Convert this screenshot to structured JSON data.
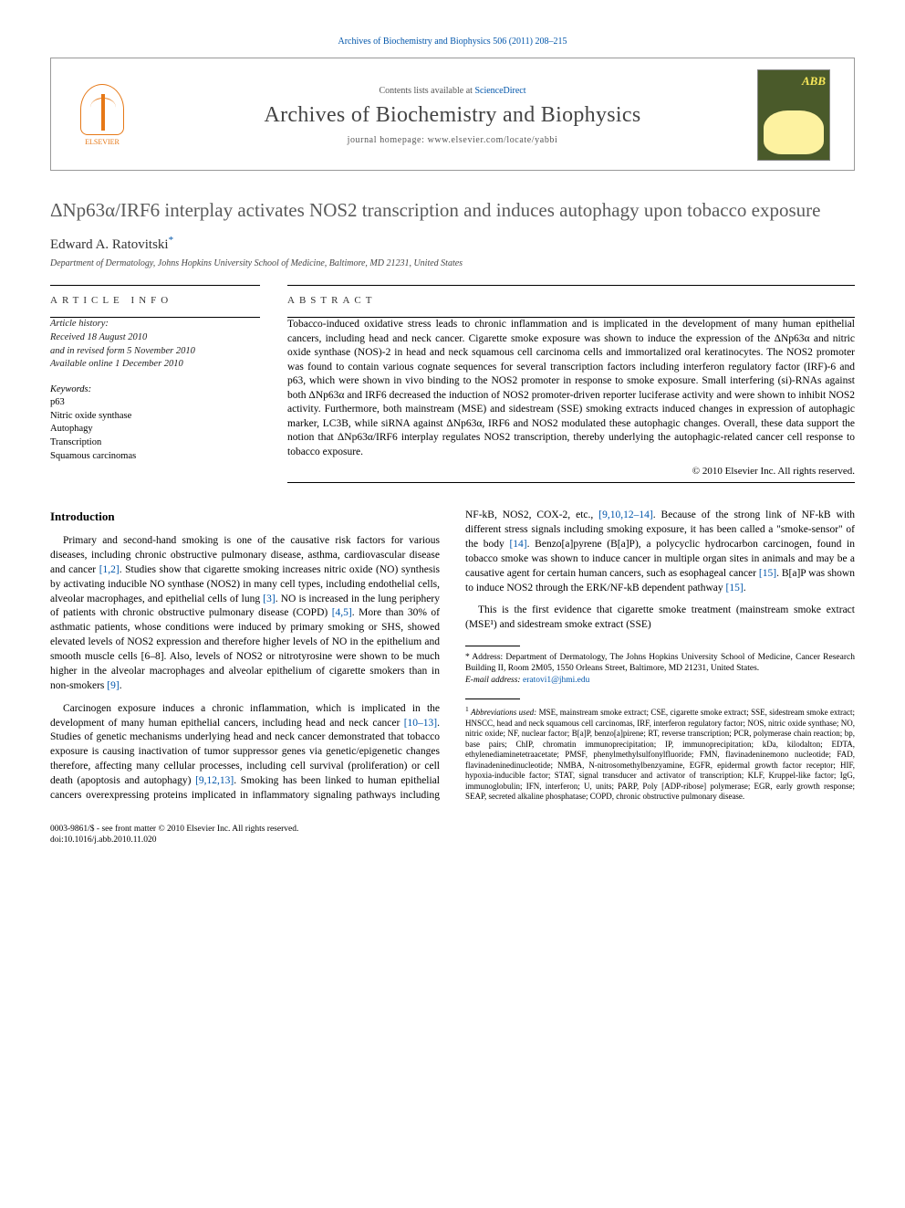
{
  "runningHead": "Archives of Biochemistry and Biophysics 506 (2011) 208–215",
  "header": {
    "contentsPrefix": "Contents lists available at ",
    "scienceDirect": "ScienceDirect",
    "journalTitle": "Archives of Biochemistry and Biophysics",
    "homepagePrefix": "journal homepage: ",
    "homepageUrl": "www.elsevier.com/locate/yabbi",
    "elsevierLabel": "ELSEVIER",
    "coverLabel": "ABB"
  },
  "article": {
    "title": "ΔNp63α/IRF6 interplay activates NOS2 transcription and induces autophagy upon tobacco exposure",
    "author": "Edward A. Ratovitski",
    "authorMark": "*",
    "affiliation": "Department of Dermatology, Johns Hopkins University School of Medicine, Baltimore, MD 21231, United States"
  },
  "articleInfo": {
    "heading": "ARTICLE INFO",
    "historyLabel": "Article history:",
    "received": "Received 18 August 2010",
    "revised": "and in revised form 5 November 2010",
    "online": "Available online 1 December 2010",
    "keywordsLabel": "Keywords:",
    "keywords": [
      "p63",
      "Nitric oxide synthase",
      "Autophagy",
      "Transcription",
      "Squamous carcinomas"
    ]
  },
  "abstract": {
    "heading": "ABSTRACT",
    "body": "Tobacco-induced oxidative stress leads to chronic inflammation and is implicated in the development of many human epithelial cancers, including head and neck cancer. Cigarette smoke exposure was shown to induce the expression of the ΔNp63α and nitric oxide synthase (NOS)-2 in head and neck squamous cell carcinoma cells and immortalized oral keratinocytes. The NOS2 promoter was found to contain various cognate sequences for several transcription factors including interferon regulatory factor (IRF)-6 and p63, which were shown in vivo binding to the NOS2 promoter in response to smoke exposure. Small interfering (si)-RNAs against both ΔNp63α and IRF6 decreased the induction of NOS2 promoter-driven reporter luciferase activity and were shown to inhibit NOS2 activity. Furthermore, both mainstream (MSE) and sidestream (SSE) smoking extracts induced changes in expression of autophagic marker, LC3B, while siRNA against ΔNp63α, IRF6 and NOS2 modulated these autophagic changes. Overall, these data support the notion that ΔNp63α/IRF6 interplay regulates NOS2 transcription, thereby underlying the autophagic-related cancer cell response to tobacco exposure.",
    "copyright": "© 2010 Elsevier Inc. All rights reserved."
  },
  "intro": {
    "heading": "Introduction",
    "p1a": "Primary and second-hand smoking is one of the causative risk factors for various diseases, including chronic obstructive pulmonary disease, asthma, cardiovascular disease and cancer ",
    "r1": "[1,2]",
    "p1b": ". Studies show that cigarette smoking increases nitric oxide (NO) synthesis by activating inducible NO synthase (NOS2) in many cell types, including endothelial cells, alveolar macrophages, and epithelial cells of lung ",
    "r2": "[3]",
    "p1c": ". NO is increased in the lung periphery of patients with chronic obstructive pulmonary disease (COPD) ",
    "r3": "[4,5]",
    "p1d": ". More than 30% of asthmatic patients, whose conditions were induced by primary smoking or SHS, showed elevated levels of NOS2 expression and therefore higher levels of NO in the epithelium and smooth muscle cells [6–8]. Also, levels of NOS2 or nitrotyrosine were shown to be much higher in the alveolar macrophages and alveolar epithelium of cigarette smokers than in non-smokers ",
    "r4": "[9]",
    "p1e": ".",
    "p2a": "Carcinogen exposure induces a chronic inflammation, which is implicated in the development of many human epithelial cancers, including head and neck cancer ",
    "r5": "[10–13]",
    "p2b": ". Studies of genetic mechanisms underlying head and neck cancer demonstrated that tobacco exposure is causing inactivation of tumor suppressor genes via ",
    "p3a": "genetic/epigenetic changes therefore, affecting many cellular processes, including cell survival (proliferation) or cell death (apoptosis and autophagy) ",
    "r6": "[9,12,13]",
    "p3b": ". Smoking has been linked to human epithelial cancers overexpressing proteins implicated in inflammatory signaling pathways including NF-kB, NOS2, COX-2, etc., ",
    "r7": "[9,10,12–14]",
    "p3c": ". Because of the strong link of NF-kB with different stress signals including smoking exposure, it has been called a \"smoke-sensor\" of the body ",
    "r8": "[14]",
    "p3d": ". Benzo[a]pyrene (B[a]P), a polycyclic hydrocarbon carcinogen, found in tobacco smoke was shown to induce cancer in multiple organ sites in animals and may be a causative agent for certain human cancers, such as esophageal cancer ",
    "r9": "[15]",
    "p3e": ". B[a]P was shown to induce NOS2 through the ERK/NF-kB dependent pathway ",
    "r10": "[15]",
    "p3f": ".",
    "p4": "This is the first evidence that cigarette smoke treatment (mainstream smoke extract (MSE¹) and sidestream smoke extract (SSE)"
  },
  "footnotes": {
    "corrPrefix": "* Address: Department of Dermatology, The Johns Hopkins University School of Medicine, Cancer Research Building II, Room 2M05, 1550 Orleans Street, Baltimore, MD 21231, United States.",
    "emailLabel": "E-mail address:",
    "email": "eratovi1@jhmi.edu",
    "abbrevLabel": "Abbreviations used:",
    "abbrevBody": " MSE, mainstream smoke extract; CSE, cigarette smoke extract; SSE, sidestream smoke extract; HNSCC, head and neck squamous cell carcinomas, IRF, interferon regulatory factor; NOS, nitric oxide synthase; NO, nitric oxide; NF, nuclear factor; B[a]P, benzo[a]pirene; RT, reverse transcription; PCR, polymerase chain reaction; bp, base pairs; ChIP, chromatin immunoprecipitation; IP, immunoprecipitation; kDa, kilodalton; EDTA, ethylenediaminetetraacetate; PMSF, phenylmethylsulfonylfluoride; FMN, flavinadeninemono nucleotide; FAD, flavinadeninedinucleotide; NMBA, N-nitrosomethylbenzyamine, EGFR, epidermal growth factor receptor; HIF, hypoxia-inducible factor; STAT, signal transducer and activator of transcription; KLF, Kruppel-like factor; IgG, immunoglobulin; IFN, interferon; U, units; PARP, Poly [ADP-ribose] polymerase; EGR, early growth response; SEAP, secreted alkaline phosphatase; COPD, chronic obstructive pulmonary disease."
  },
  "footer": {
    "line1": "0003-9861/$ - see front matter © 2010 Elsevier Inc. All rights reserved.",
    "line2": "doi:10.1016/j.abb.2010.11.020"
  },
  "colors": {
    "link": "#0055aa",
    "elsevierOrange": "#e67817",
    "coverBg": "#4a5a2a",
    "coverAccent": "#f8e85a"
  },
  "typography": {
    "bodyFont": "Georgia, Times New Roman, serif",
    "titleSize": 21,
    "journalTitleSize": 24,
    "bodySize": 11.5,
    "footnoteSize": 9.5
  }
}
